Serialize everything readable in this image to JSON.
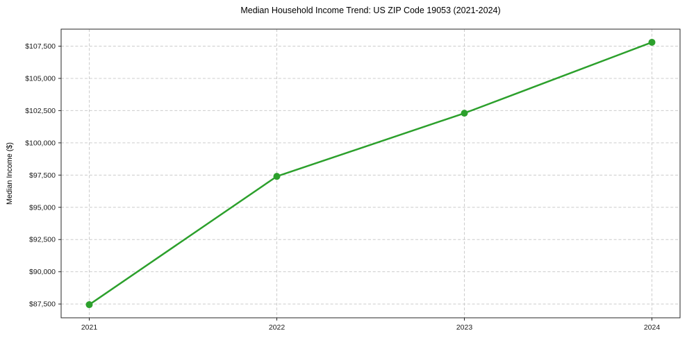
{
  "chart_data": {
    "type": "line",
    "title": "Median Household Income Trend: US ZIP Code 19053 (2021-2024)",
    "xlabel": "",
    "ylabel": "Median Income ($)",
    "categories": [
      "2021",
      "2022",
      "2023",
      "2024"
    ],
    "values": [
      87450,
      97400,
      102300,
      107800
    ],
    "y_ticks": [
      {
        "value": 87500,
        "label": "$87,500"
      },
      {
        "value": 90000,
        "label": "$90,000"
      },
      {
        "value": 92500,
        "label": "$92,500"
      },
      {
        "value": 95000,
        "label": "$95,000"
      },
      {
        "value": 97500,
        "label": "$97,500"
      },
      {
        "value": 100000,
        "label": "$100,000"
      },
      {
        "value": 102500,
        "label": "$102,500"
      },
      {
        "value": 105000,
        "label": "$105,000"
      },
      {
        "value": 107500,
        "label": "$107,500"
      }
    ],
    "xlim": [
      2020.85,
      2024.15
    ],
    "ylim": [
      86430,
      108820
    ],
    "grid": true,
    "grid_style": "dashed",
    "legend": false,
    "line_color": "#2ca02c",
    "marker": "circle",
    "grid_color": "#cccccc",
    "axis_color": "#262626",
    "text_color": "#1a1a1a"
  }
}
